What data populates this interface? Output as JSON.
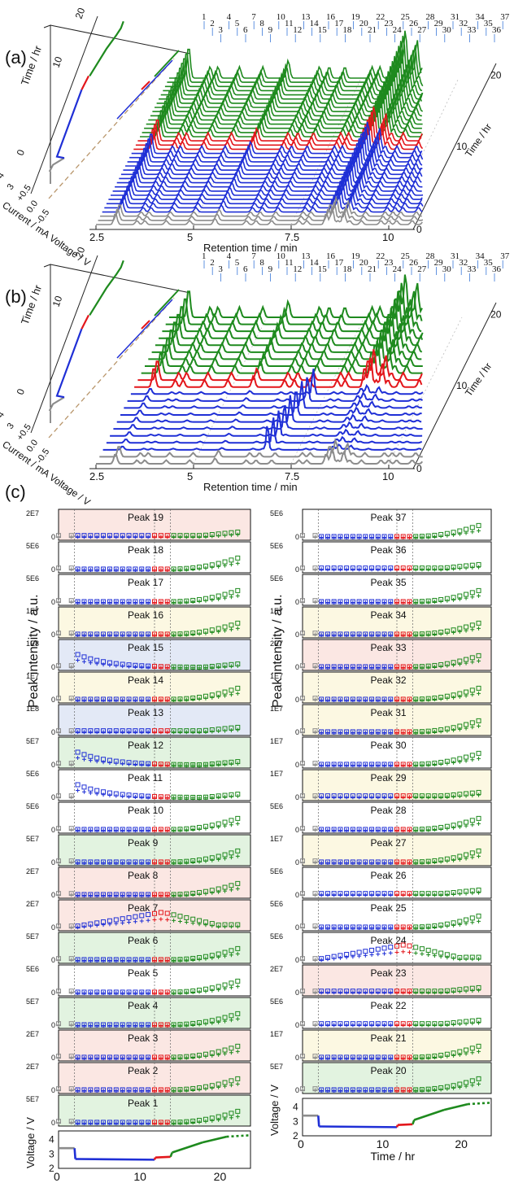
{
  "panel_labels": [
    "(a)",
    "(b)",
    "(c)"
  ],
  "colors": {
    "gray": "#8c8c8c",
    "blue": "#1f2fd6",
    "red": "#e3161b",
    "green": "#1e8a1e",
    "dash": "#b8956a",
    "peak_marker": "#3a78d8",
    "bg_red": "#fbe7e3",
    "bg_blue": "#e3e9f6",
    "bg_yellow": "#fcf8e2",
    "bg_green": "#e2f3e0",
    "bg_white": "#ffffff"
  },
  "top_panels": {
    "x_ticks": [
      "2.5",
      "5",
      "7.5",
      "10"
    ],
    "x_axis_label": "Retention time / min",
    "time_ticks": [
      "0",
      "10",
      "20"
    ],
    "time_axis_label": "Time / hr",
    "left_time_label": "Time / hr",
    "left_time_ticks": [
      "0",
      "10",
      "20"
    ],
    "left_voltage_ticks": [
      "4",
      "3",
      "+0.5",
      "0.0",
      "-0.5"
    ],
    "left_voltage_label": "Current / mA Voltage / V",
    "peak_numbers": [
      "1",
      "2",
      "3",
      "4",
      "5",
      "6",
      "7",
      "8",
      "9",
      "10",
      "11",
      "12",
      "13",
      "14",
      "15",
      "16",
      "17",
      "18",
      "19",
      "20",
      "21",
      "22",
      "23",
      "24",
      "25",
      "26",
      "27",
      "28",
      "29",
      "30",
      "31",
      "32",
      "33",
      "34",
      "35",
      "36",
      "37"
    ]
  },
  "chart_data": {
    "type": "scatter",
    "title": "",
    "xlabel": "Time / hr",
    "ylabel": "Peak intensity / a.u.",
    "voltage_ylabel": "Voltage / V",
    "x_ticks": [
      "0",
      "10",
      "20"
    ],
    "voltage_ticks": [
      "2",
      "3",
      "4"
    ],
    "xlim": [
      0,
      24
    ],
    "time_points": [
      0,
      1.6,
      2.4,
      3.2,
      4.0,
      4.8,
      5.6,
      6.4,
      7.2,
      8.0,
      8.8,
      9.6,
      10.4,
      11.2,
      12.0,
      12.8,
      13.6,
      14.4,
      15.2,
      16.0,
      16.8,
      17.6,
      18.4,
      19.2,
      20.0,
      20.8,
      21.6,
      22.4
    ],
    "phase_boundaries": [
      2,
      12,
      14
    ],
    "left_column": [
      {
        "name": "Peak 19",
        "ymax": "2E7",
        "bg": "red",
        "shape": "flat"
      },
      {
        "name": "Peak 18",
        "ymax": "5E6",
        "bg": "white",
        "shape": "rise"
      },
      {
        "name": "Peak 17",
        "ymax": "5E6",
        "bg": "white",
        "shape": "rise"
      },
      {
        "name": "Peak 16",
        "ymax": "1E7",
        "bg": "yellow",
        "shape": "rise"
      },
      {
        "name": "Peak 15",
        "ymax": "1E8",
        "bg": "blue",
        "shape": "decay"
      },
      {
        "name": "Peak 14",
        "ymax": "1E7",
        "bg": "yellow",
        "shape": "rise"
      },
      {
        "name": "Peak 13",
        "ymax": "1E8",
        "bg": "blue",
        "shape": "flat"
      },
      {
        "name": "Peak 12",
        "ymax": "5E7",
        "bg": "green",
        "shape": "decay"
      },
      {
        "name": "Peak 11",
        "ymax": "5E6",
        "bg": "white",
        "shape": "decay"
      },
      {
        "name": "Peak 10",
        "ymax": "5E6",
        "bg": "white",
        "shape": "rise"
      },
      {
        "name": "Peak 9",
        "ymax": "5E7",
        "bg": "green",
        "shape": "rise"
      },
      {
        "name": "Peak 8",
        "ymax": "2E7",
        "bg": "red",
        "shape": "rise"
      },
      {
        "name": "Peak 7",
        "ymax": "2E7",
        "bg": "red",
        "shape": "hump"
      },
      {
        "name": "Peak 6",
        "ymax": "5E7",
        "bg": "green",
        "shape": "rise"
      },
      {
        "name": "Peak 5",
        "ymax": "5E6",
        "bg": "white",
        "shape": "rise"
      },
      {
        "name": "Peak 4",
        "ymax": "5E7",
        "bg": "green",
        "shape": "rise"
      },
      {
        "name": "Peak 3",
        "ymax": "2E7",
        "bg": "red",
        "shape": "rise"
      },
      {
        "name": "Peak 2",
        "ymax": "2E7",
        "bg": "red",
        "shape": "rise"
      },
      {
        "name": "Peak 1",
        "ymax": "5E7",
        "bg": "green",
        "shape": "rise"
      }
    ],
    "right_column": [
      {
        "name": "Peak 37",
        "ymax": "5E6",
        "bg": "white",
        "shape": "rise"
      },
      {
        "name": "Peak 36",
        "ymax": "5E6",
        "bg": "white",
        "shape": "flat"
      },
      {
        "name": "Peak 35",
        "ymax": "5E6",
        "bg": "white",
        "shape": "rise"
      },
      {
        "name": "Peak 34",
        "ymax": "1E7",
        "bg": "yellow",
        "shape": "rise"
      },
      {
        "name": "Peak 33",
        "ymax": "2E7",
        "bg": "red",
        "shape": "rise"
      },
      {
        "name": "Peak 32",
        "ymax": "1E7",
        "bg": "yellow",
        "shape": "rise"
      },
      {
        "name": "Peak 31",
        "ymax": "1E7",
        "bg": "yellow",
        "shape": "rise"
      },
      {
        "name": "Peak 30",
        "ymax": "1E7",
        "bg": "white",
        "shape": "rise"
      },
      {
        "name": "Peak 29",
        "ymax": "1E7",
        "bg": "yellow",
        "shape": "flat"
      },
      {
        "name": "Peak 28",
        "ymax": "5E6",
        "bg": "white",
        "shape": "rise"
      },
      {
        "name": "Peak 27",
        "ymax": "1E7",
        "bg": "yellow",
        "shape": "rise"
      },
      {
        "name": "Peak 26",
        "ymax": "5E6",
        "bg": "white",
        "shape": "flat"
      },
      {
        "name": "Peak 25",
        "ymax": "5E6",
        "bg": "white",
        "shape": "rise"
      },
      {
        "name": "Peak 24",
        "ymax": "5E6",
        "bg": "white",
        "shape": "hump"
      },
      {
        "name": "Peak 23",
        "ymax": "2E7",
        "bg": "red",
        "shape": "flat"
      },
      {
        "name": "Peak 22",
        "ymax": "5E6",
        "bg": "white",
        "shape": "flat"
      },
      {
        "name": "Peak 21",
        "ymax": "1E7",
        "bg": "yellow",
        "shape": "rise"
      },
      {
        "name": "Peak 20",
        "ymax": "5E7",
        "bg": "green",
        "shape": "rise"
      }
    ],
    "voltage_curve": [
      {
        "t": 0,
        "v": 3.4
      },
      {
        "t": 2,
        "v": 3.4
      },
      {
        "t": 2.1,
        "v": 2.65
      },
      {
        "t": 12,
        "v": 2.6
      },
      {
        "t": 12.1,
        "v": 2.75
      },
      {
        "t": 14,
        "v": 2.8
      },
      {
        "t": 14.2,
        "v": 3.1
      },
      {
        "t": 18,
        "v": 3.8
      },
      {
        "t": 21,
        "v": 4.2
      },
      {
        "t": 24,
        "v": 4.3
      }
    ]
  }
}
